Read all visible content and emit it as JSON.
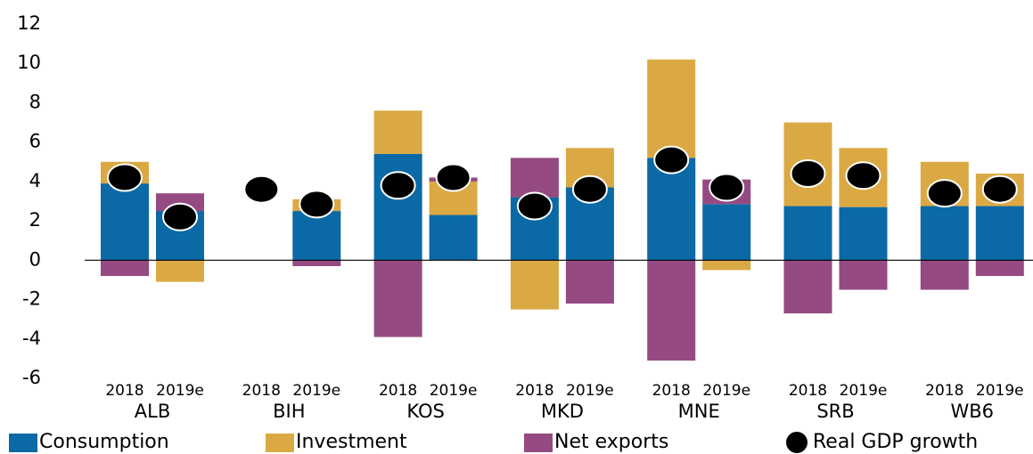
{
  "chart_data": {
    "type": "bar",
    "stacked": true,
    "categories": [
      "2018",
      "2019e",
      "2018",
      "2019e",
      "2018",
      "2019e",
      "2018",
      "2019e",
      "2018",
      "2019e",
      "2018",
      "2019e",
      "2018",
      "2019e"
    ],
    "groups": [
      "ALB",
      "BIH",
      "KOS",
      "MKD",
      "MNE",
      "SRB",
      "WB6"
    ],
    "series": [
      {
        "name": "Consumption",
        "color": "#0b69a6",
        "values": [
          3.9,
          2.5,
          null,
          2.5,
          5.4,
          2.3,
          3.2,
          3.7,
          5.2,
          2.85,
          2.75,
          2.7,
          2.75,
          2.75
        ]
      },
      {
        "name": "Investment",
        "color": "#dba944",
        "values": [
          1.1,
          -1.1,
          null,
          0.6,
          2.2,
          1.7,
          -2.5,
          2.0,
          5.0,
          -0.5,
          4.25,
          3.0,
          2.25,
          1.65
        ]
      },
      {
        "name": "Net exports",
        "color": "#954a82",
        "values": [
          -0.8,
          0.9,
          null,
          -0.3,
          -3.9,
          0.2,
          2.0,
          -2.2,
          -5.1,
          1.25,
          -2.7,
          -1.5,
          -1.5,
          -0.8
        ]
      },
      {
        "name": "Real GDP growth",
        "type": "scatter",
        "color": "#000000",
        "values": [
          4.2,
          2.2,
          3.6,
          2.85,
          3.8,
          4.2,
          2.75,
          3.6,
          5.1,
          3.7,
          4.4,
          4.3,
          3.4,
          3.6
        ]
      }
    ],
    "ylim": [
      -6,
      12
    ],
    "yticks": [
      -6,
      -4,
      -2,
      0,
      2,
      4,
      6,
      8,
      10,
      12
    ],
    "grid": false,
    "legend": "bottom"
  }
}
